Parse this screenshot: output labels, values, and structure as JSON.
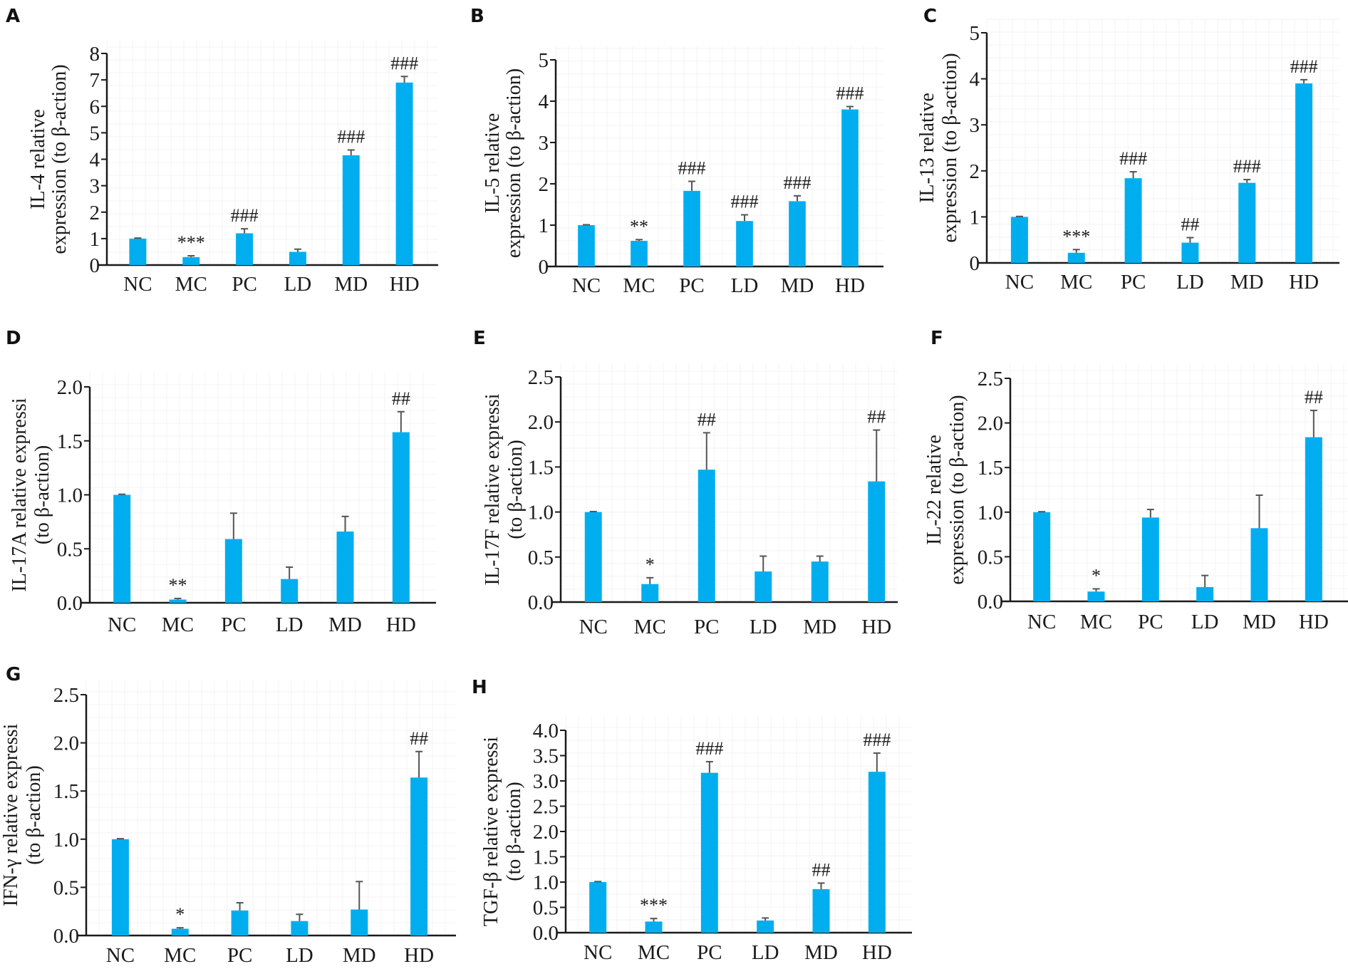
{
  "figure": {
    "bar_color": "#00aeef",
    "error_color": "#555555",
    "axis_color": "#1a1a1a"
  },
  "chart_data": [
    {
      "panel": "A",
      "type": "bar",
      "title": "",
      "xlabel": "",
      "ylabel_lines": [
        "IL-4 relative",
        "expression (to β-action)"
      ],
      "categories": [
        "NC",
        "MC",
        "PC",
        "LD",
        "MD",
        "HD"
      ],
      "values": [
        1.0,
        0.3,
        1.2,
        0.5,
        4.15,
        6.9
      ],
      "errors": [
        0.02,
        0.05,
        0.17,
        0.1,
        0.2,
        0.23
      ],
      "annotations": [
        "",
        "***",
        "###",
        "",
        "###",
        "###"
      ],
      "ylim": [
        0,
        8
      ],
      "yticks": [
        "0",
        "1",
        "2",
        "3",
        "4",
        "5",
        "6",
        "7",
        "8"
      ],
      "ytick_values": [
        0,
        1,
        2,
        3,
        4,
        5,
        6,
        7,
        8
      ],
      "grid": false,
      "legend": "none"
    },
    {
      "panel": "B",
      "type": "bar",
      "title": "",
      "xlabel": "",
      "ylabel_lines": [
        "IL-5 relative",
        "expression (to β-action)"
      ],
      "categories": [
        "NC",
        "MC",
        "PC",
        "LD",
        "MD",
        "HD"
      ],
      "values": [
        1.0,
        0.62,
        1.83,
        1.1,
        1.58,
        3.8
      ],
      "errors": [
        0.01,
        0.03,
        0.23,
        0.15,
        0.13,
        0.07
      ],
      "annotations": [
        "",
        "**",
        "###",
        "###",
        "###",
        "###"
      ],
      "ylim": [
        0,
        5
      ],
      "yticks": [
        "0",
        "1",
        "2",
        "3",
        "4",
        "5"
      ],
      "ytick_values": [
        0,
        1,
        2,
        3,
        4,
        5
      ],
      "grid": false,
      "legend": "none"
    },
    {
      "panel": "C",
      "type": "bar",
      "title": "",
      "xlabel": "",
      "ylabel_lines": [
        "IL-13 relative",
        "expression (to β-action)"
      ],
      "categories": [
        "NC",
        "MC",
        "PC",
        "LD",
        "MD",
        "HD"
      ],
      "values": [
        1.0,
        0.22,
        1.84,
        0.44,
        1.74,
        3.9
      ],
      "errors": [
        0.01,
        0.07,
        0.14,
        0.11,
        0.07,
        0.08
      ],
      "annotations": [
        "",
        "***",
        "###",
        "##",
        "###",
        "###"
      ],
      "ylim": [
        0,
        5
      ],
      "yticks": [
        "0",
        "1",
        "2",
        "3",
        "4",
        "5"
      ],
      "ytick_values": [
        0,
        1,
        2,
        3,
        4,
        5
      ],
      "grid": false,
      "legend": "none"
    },
    {
      "panel": "D",
      "type": "bar",
      "title": "",
      "xlabel": "",
      "ylabel_lines": [
        "IL-17A relative expressi",
        "(to β-action)"
      ],
      "categories": [
        "NC",
        "MC",
        "PC",
        "LD",
        "MD",
        "HD"
      ],
      "values": [
        1.0,
        0.03,
        0.59,
        0.22,
        0.66,
        1.58
      ],
      "errors": [
        0.005,
        0.01,
        0.24,
        0.11,
        0.14,
        0.19
      ],
      "annotations": [
        "",
        "**",
        "",
        "",
        "",
        "##"
      ],
      "ylim": [
        0,
        2.0
      ],
      "yticks": [
        "0.0",
        "0.5",
        "1.0",
        "1.5",
        "2.0"
      ],
      "ytick_values": [
        0,
        0.5,
        1.0,
        1.5,
        2.0
      ],
      "grid": false,
      "legend": "none"
    },
    {
      "panel": "E",
      "type": "bar",
      "title": "",
      "xlabel": "",
      "ylabel_lines": [
        "IL-17F relative expressi",
        "(to β-action)"
      ],
      "categories": [
        "NC",
        "MC",
        "PC",
        "LD",
        "MD",
        "HD"
      ],
      "values": [
        1.0,
        0.2,
        1.47,
        0.34,
        0.45,
        1.34
      ],
      "errors": [
        0.005,
        0.07,
        0.41,
        0.17,
        0.06,
        0.57
      ],
      "annotations": [
        "",
        "*",
        "##",
        "",
        "",
        "##"
      ],
      "ylim": [
        0,
        2.5
      ],
      "yticks": [
        "0.0",
        "0.5",
        "1.0",
        "1.5",
        "2.0",
        "2.5"
      ],
      "ytick_values": [
        0,
        0.5,
        1.0,
        1.5,
        2.0,
        2.5
      ],
      "grid": false,
      "legend": "none"
    },
    {
      "panel": "F",
      "type": "bar",
      "title": "",
      "xlabel": "",
      "ylabel_lines": [
        "IL-22 relative",
        "expression (to β-action)"
      ],
      "categories": [
        "NC",
        "MC",
        "PC",
        "LD",
        "MD",
        "HD"
      ],
      "values": [
        1.0,
        0.11,
        0.94,
        0.16,
        0.82,
        1.84
      ],
      "errors": [
        0.005,
        0.03,
        0.09,
        0.13,
        0.37,
        0.3
      ],
      "annotations": [
        "",
        "*",
        "",
        "",
        "",
        "##"
      ],
      "ylim": [
        0,
        2.5
      ],
      "yticks": [
        "0.0",
        "0.5",
        "1.0",
        "1.5",
        "2.0",
        "2.5"
      ],
      "ytick_values": [
        0,
        0.5,
        1.0,
        1.5,
        2.0,
        2.5
      ],
      "grid": false,
      "legend": "none"
    },
    {
      "panel": "G",
      "type": "bar",
      "title": "",
      "xlabel": "",
      "ylabel_lines": [
        "IFN-γ relative expressi",
        "(to β-action)"
      ],
      "categories": [
        "NC",
        "MC",
        "PC",
        "LD",
        "MD",
        "HD"
      ],
      "values": [
        1.0,
        0.07,
        0.26,
        0.15,
        0.27,
        1.64
      ],
      "errors": [
        0.005,
        0.01,
        0.08,
        0.07,
        0.29,
        0.27
      ],
      "annotations": [
        "",
        "*",
        "",
        "",
        "",
        "##"
      ],
      "ylim": [
        0,
        2.5
      ],
      "yticks": [
        "0.0",
        "0.5",
        "1.0",
        "1.5",
        "2.0",
        "2.5"
      ],
      "ytick_values": [
        0,
        0.5,
        1.0,
        1.5,
        2.0,
        2.5
      ],
      "grid": false,
      "legend": "none"
    },
    {
      "panel": "H",
      "type": "bar",
      "title": "",
      "xlabel": "",
      "ylabel_lines": [
        "TGF-β relative expressi",
        "(to β-action)"
      ],
      "categories": [
        "NC",
        "MC",
        "PC",
        "LD",
        "MD",
        "HD"
      ],
      "values": [
        1.0,
        0.22,
        3.16,
        0.24,
        0.86,
        3.18
      ],
      "errors": [
        0.01,
        0.06,
        0.22,
        0.05,
        0.12,
        0.37
      ],
      "annotations": [
        "",
        "***",
        "###",
        "",
        "##",
        "###"
      ],
      "ylim": [
        0,
        4.0
      ],
      "yticks": [
        "0.0",
        "0.5",
        "1.0",
        "1.5",
        "2.0",
        "2.5",
        "3.0",
        "3.5",
        "4.0"
      ],
      "ytick_values": [
        0,
        0.5,
        1.0,
        1.5,
        2.0,
        2.5,
        3.0,
        3.5,
        4.0
      ],
      "grid": false,
      "legend": "none"
    }
  ]
}
